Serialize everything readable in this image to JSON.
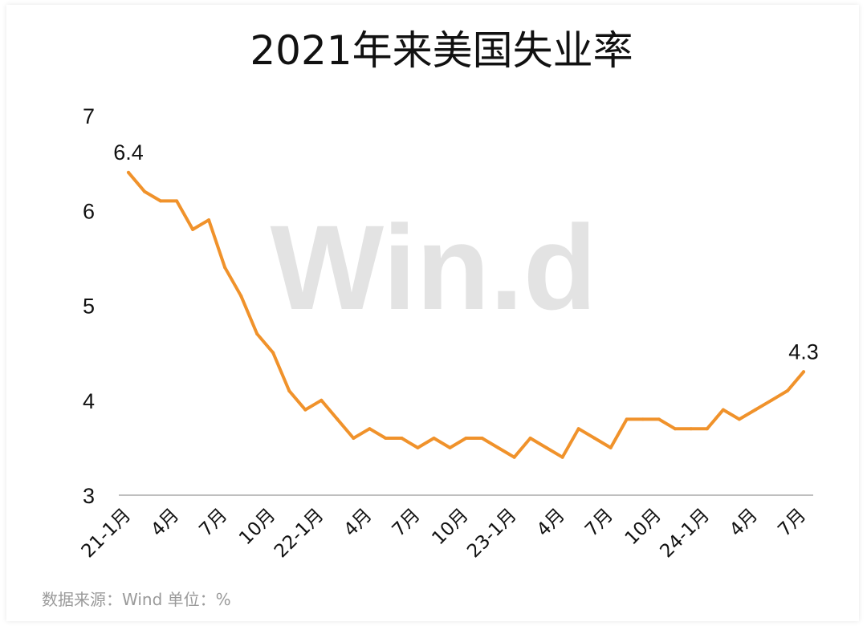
{
  "watermark": "Win.d",
  "source_note": "数据来源：Wind  单位：%",
  "chart_data": {
    "type": "line",
    "title": "2021年来美国失业率",
    "xlabel": "",
    "ylabel": "",
    "ylim": [
      3,
      7
    ],
    "yticks": [
      "3",
      "4",
      "5",
      "6",
      "7"
    ],
    "grid": false,
    "x": [
      "21-1月",
      "21-2月",
      "21-3月",
      "21-4月",
      "21-5月",
      "21-6月",
      "21-7月",
      "21-8月",
      "21-9月",
      "21-10月",
      "21-11月",
      "21-12月",
      "22-1月",
      "22-2月",
      "22-3月",
      "22-4月",
      "22-5月",
      "22-6月",
      "22-7月",
      "22-8月",
      "22-9月",
      "22-10月",
      "22-11月",
      "22-12月",
      "23-1月",
      "23-2月",
      "23-3月",
      "23-4月",
      "23-5月",
      "23-6月",
      "23-7月",
      "23-8月",
      "23-9月",
      "23-10月",
      "23-11月",
      "23-12月",
      "24-1月",
      "24-2月",
      "24-3月",
      "24-4月",
      "24-5月",
      "24-6月",
      "24-7月"
    ],
    "xtick_labels": [
      "21-1月",
      "4月",
      "7月",
      "10月",
      "22-1月",
      "4月",
      "7月",
      "10月",
      "23-1月",
      "4月",
      "7月",
      "10月",
      "24-1月",
      "4月",
      "7月"
    ],
    "series": [
      {
        "color": "#f0922b",
        "values": [
          6.4,
          6.2,
          6.1,
          6.1,
          5.8,
          5.9,
          5.4,
          5.1,
          4.7,
          4.5,
          4.1,
          3.9,
          4.0,
          3.8,
          3.6,
          3.7,
          3.6,
          3.6,
          3.5,
          3.6,
          3.5,
          3.6,
          3.6,
          3.5,
          3.4,
          3.6,
          3.5,
          3.4,
          3.7,
          3.6,
          3.5,
          3.8,
          3.8,
          3.8,
          3.7,
          3.7,
          3.7,
          3.9,
          3.8,
          3.9,
          4.0,
          4.1,
          4.3
        ]
      }
    ],
    "data_labels": [
      {
        "index": 0,
        "text": "6.4"
      },
      {
        "index": 42,
        "text": "4.3"
      }
    ]
  }
}
